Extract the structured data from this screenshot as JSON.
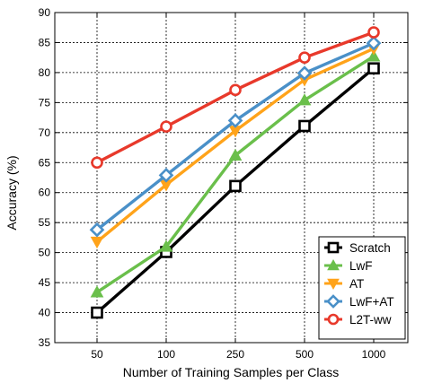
{
  "chart_data": {
    "type": "line",
    "title": "",
    "xlabel": "Number of Training Samples per Class",
    "ylabel": "Accuracy (%)",
    "categories": [
      "50",
      "100",
      "250",
      "500",
      "1000"
    ],
    "ylim": [
      35,
      90
    ],
    "yticks": [
      35,
      40,
      45,
      50,
      55,
      60,
      65,
      70,
      75,
      80,
      85,
      90
    ],
    "grid": true,
    "legend_position": "bottom-right",
    "series": [
      {
        "name": "Scratch",
        "values": [
          40.0,
          50.1,
          61.1,
          71.1,
          80.7
        ],
        "color": "#000000",
        "marker": "square"
      },
      {
        "name": "LwF",
        "values": [
          43.4,
          51.0,
          66.2,
          75.4,
          82.7
        ],
        "color": "#6abf4b",
        "marker": "triangle-up"
      },
      {
        "name": "AT",
        "values": [
          51.8,
          61.3,
          70.3,
          78.8,
          84.0
        ],
        "color": "#ffa31a",
        "marker": "triangle-down"
      },
      {
        "name": "LwF+AT",
        "values": [
          53.8,
          62.9,
          72.0,
          79.9,
          84.9
        ],
        "color": "#4a90c8",
        "marker": "diamond"
      },
      {
        "name": "L2T-ww",
        "values": [
          65.0,
          71.0,
          77.1,
          82.5,
          86.7
        ],
        "color": "#e8392b",
        "marker": "circle"
      }
    ]
  }
}
